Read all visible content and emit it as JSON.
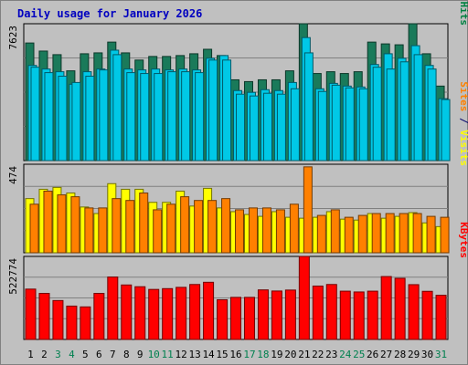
{
  "chart_data": {
    "type": "bar",
    "title": "Daily usage for January 2026",
    "categories": [
      "1",
      "2",
      "3",
      "4",
      "5",
      "6",
      "7",
      "8",
      "9",
      "10",
      "11",
      "12",
      "13",
      "14",
      "15",
      "16",
      "17",
      "18",
      "19",
      "20",
      "21",
      "22",
      "23",
      "24",
      "25",
      "26",
      "27",
      "28",
      "29",
      "30",
      "31"
    ],
    "weekend_days": [
      "3",
      "4",
      "10",
      "11",
      "17",
      "18",
      "24",
      "25",
      "31"
    ],
    "panels": [
      {
        "id": "top",
        "max_label": "7623",
        "ylim": [
          0,
          7623
        ],
        "side_labels": [
          {
            "text": "Pages",
            "color": "#00c8e6"
          },
          {
            "text": " / ",
            "color": "#00006b"
          },
          {
            "text": "Files",
            "color": "#0080ff"
          },
          {
            "text": " / ",
            "color": "#00006b"
          },
          {
            "text": "Hits",
            "color": "#008040"
          }
        ],
        "series": [
          {
            "name": "Hits",
            "color": "#1a7a5a",
            "values": [
              6550,
              6100,
              5900,
              5000,
              5950,
              6000,
              6600,
              6000,
              5600,
              5800,
              5800,
              5850,
              5950,
              6200,
              5850,
              4500,
              4400,
              4500,
              4500,
              5000,
              7650,
              4850,
              4950,
              4850,
              4950,
              6600,
              6500,
              6450,
              7700,
              5950,
              4150
            ]
          },
          {
            "name": "Files",
            "color": "#00c8e6",
            "values": [
              5300,
              5100,
              4950,
              4250,
              4950,
              5100,
              6150,
              5100,
              5050,
              5100,
              5050,
              5100,
              5050,
              5700,
              5850,
              3900,
              3800,
              3950,
              3900,
              4350,
              6850,
              4000,
              4300,
              4150,
              4100,
              5350,
              5950,
              5700,
              6400,
              5300,
              3450
            ]
          },
          {
            "name": "Pages",
            "color": "#00c8e6",
            "values": [
              5200,
              4900,
              4700,
              4350,
              4700,
              5050,
              5900,
              4900,
              4850,
              4850,
              4950,
              4950,
              4900,
              5600,
              5600,
              3700,
              3600,
              3750,
              3700,
              4000,
              6000,
              3850,
              4200,
              4050,
              4000,
              5200,
              5100,
              5500,
              5900,
              5100,
              3400
            ]
          }
        ]
      },
      {
        "id": "middle",
        "max_label": "474",
        "ylim": [
          0,
          474
        ],
        "side_labels": [
          {
            "text": "Sites",
            "color": "#ff8000"
          },
          {
            "text": " / ",
            "color": "#00006b"
          },
          {
            "text": "Visits",
            "color": "#ffff00"
          }
        ],
        "series": [
          {
            "name": "Visits",
            "color": "#ffff00",
            "values": [
              290,
              340,
              350,
              320,
              245,
              210,
              370,
              340,
              340,
              270,
              270,
              330,
              250,
              345,
              240,
              220,
              205,
              195,
              220,
              190,
              185,
              190,
              220,
              180,
              175,
              210,
              185,
              195,
              215,
              160,
              140
            ]
          },
          {
            "name": "Sites",
            "color": "#ff8000",
            "values": [
              260,
              330,
              310,
              300,
              240,
              240,
              290,
              280,
              320,
              230,
              260,
              300,
              280,
              280,
              290,
              230,
              240,
              240,
              230,
              260,
              460,
              200,
              230,
              190,
              200,
              210,
              210,
              210,
              210,
              195,
              190
            ]
          }
        ]
      },
      {
        "id": "bottom",
        "max_label": "522774",
        "ylim": [
          0,
          522774
        ],
        "side_labels": [
          {
            "text": "KBytes",
            "color": "#ff0000"
          }
        ],
        "series": [
          {
            "name": "KBytes",
            "color": "#ff0000",
            "values": [
              317000,
              290000,
              245000,
              210000,
              205000,
              290000,
              393000,
              343000,
              332000,
              315000,
              320000,
              328000,
              346000,
              360000,
              250000,
              265000,
              265000,
              312000,
              305000,
              311000,
              527000,
              336000,
              346000,
              304000,
              299000,
              304000,
              396000,
              385000,
              345000,
              303000,
              278000
            ]
          }
        ]
      }
    ],
    "colors": {
      "background": "#c0c0c0",
      "title": "#0000c0",
      "axis_text": "#000000",
      "weekend_text": "#00804f"
    }
  }
}
